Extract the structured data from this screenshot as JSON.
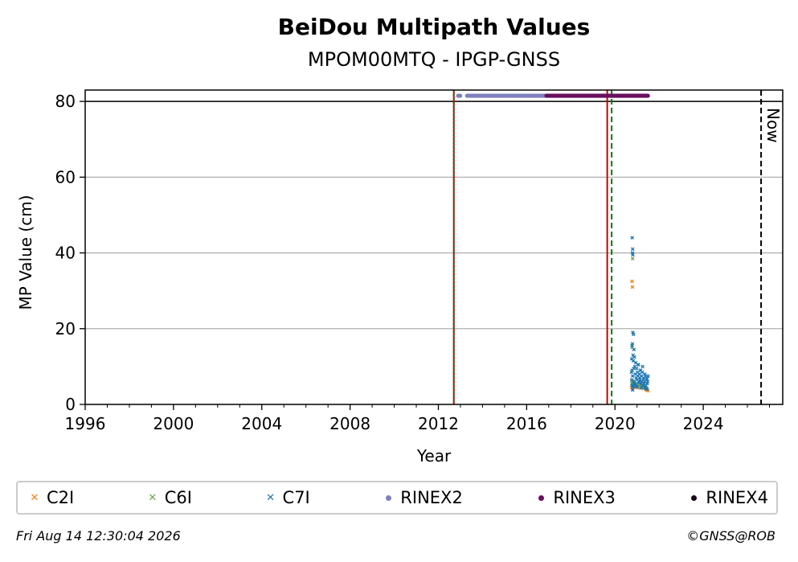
{
  "chart_data": {
    "type": "scatter",
    "title": "BeiDou Multipath Values",
    "subtitle": "MPOM00MTQ - IPGP-GNSS",
    "xlabel": "Year",
    "ylabel": "MP Value (cm)",
    "xlim": [
      1996,
      2027.6
    ],
    "ylim": [
      0,
      83
    ],
    "x_ticks": [
      "1996",
      "2000",
      "2004",
      "2008",
      "2012",
      "2016",
      "2020",
      "2024"
    ],
    "y_ticks": [
      "0",
      "20",
      "40",
      "60",
      "80"
    ],
    "grid": "horizontal",
    "legend_placement": "bottom",
    "colors": {
      "C2I": "#ff7f0e",
      "C6I": "#6aa84f",
      "C7I": "#1f77b4",
      "RINEX2": "#8080c0",
      "RINEX3": "#6a0f5f",
      "RINEX4": "#1a0018",
      "red_line": "#cc0000",
      "green_line": "#007f00",
      "now_line": "#000000"
    },
    "series": [
      {
        "name": "C2I",
        "marker": "x",
        "color": "#ff7f0e",
        "x": [
          2020.75,
          2020.78,
          2020.8,
          2020.82,
          2020.85,
          2020.88,
          2020.9,
          2020.95,
          2021.0,
          2021.05,
          2021.1,
          2021.15,
          2021.2,
          2021.25,
          2021.3,
          2021.35,
          2021.4,
          2021.45,
          2021.5,
          2020.77,
          2020.79
        ],
        "y": [
          4.5,
          5.0,
          4.2,
          6.0,
          5.5,
          4.8,
          5.2,
          4.6,
          5.0,
          4.4,
          4.9,
          4.3,
          5.1,
          4.7,
          4.2,
          4.5,
          4.0,
          3.8,
          3.6,
          32.5,
          31.0
        ]
      },
      {
        "name": "C6I",
        "marker": "x",
        "color": "#6aa84f",
        "x": [
          2020.76,
          2020.79,
          2020.82,
          2020.86,
          2020.9,
          2020.96,
          2021.02,
          2021.08,
          2021.15,
          2021.22,
          2021.3,
          2021.38,
          2021.46,
          2020.8,
          2020.78
        ],
        "y": [
          5.5,
          6.2,
          5.0,
          5.8,
          4.9,
          5.4,
          5.1,
          4.8,
          5.3,
          4.6,
          5.0,
          4.4,
          4.2,
          38.5,
          15.0
        ]
      },
      {
        "name": "C7I",
        "marker": "x",
        "color": "#1f77b4",
        "x": [
          2020.75,
          2020.76,
          2020.77,
          2020.78,
          2020.79,
          2020.8,
          2020.81,
          2020.82,
          2020.83,
          2020.84,
          2020.85,
          2020.86,
          2020.88,
          2020.9,
          2020.92,
          2020.94,
          2020.96,
          2020.98,
          2021.0,
          2021.02,
          2021.04,
          2021.06,
          2021.08,
          2021.1,
          2021.12,
          2021.14,
          2021.16,
          2021.18,
          2021.2,
          2021.22,
          2021.24,
          2021.26,
          2021.28,
          2021.3,
          2021.32,
          2021.34,
          2021.36,
          2021.38,
          2021.4,
          2021.42,
          2021.44,
          2021.46,
          2021.48,
          2021.5,
          2020.78,
          2020.8,
          2020.79,
          2020.81,
          2020.77,
          2020.82,
          2020.84,
          2020.86,
          2020.9,
          2020.95,
          2021.0,
          2021.1,
          2021.2,
          2021.3,
          2021.4,
          2020.76,
          2020.8,
          2020.85,
          2020.9,
          2021.05,
          2021.15,
          2021.25,
          2021.35,
          2021.45
        ],
        "y": [
          8.5,
          12.0,
          15.5,
          9.0,
          16.0,
          7.5,
          19.0,
          13.0,
          11.5,
          18.5,
          9.5,
          14.5,
          12.5,
          10.0,
          8.0,
          11.0,
          7.0,
          9.5,
          6.5,
          8.5,
          7.5,
          10.5,
          6.0,
          8.0,
          7.0,
          6.5,
          9.0,
          5.5,
          7.5,
          6.0,
          8.5,
          5.0,
          6.5,
          7.0,
          5.5,
          6.0,
          4.5,
          7.5,
          5.0,
          6.5,
          4.0,
          5.5,
          6.0,
          7.5,
          44.0,
          41.0,
          40.0,
          39.5,
          5.0,
          4.5,
          6.0,
          5.5,
          4.8,
          5.2,
          4.6,
          5.8,
          4.4,
          5.0,
          4.2,
          6.5,
          3.8,
          4.9,
          5.6,
          10.5,
          9.0,
          10.0,
          8.0,
          6.8
        ]
      }
    ],
    "files": [
      {
        "name": "RINEX2",
        "marker": "dot",
        "color": "#8080c0",
        "y": 81.5,
        "ranges": [
          [
            2012.9,
            2013.0
          ],
          [
            2013.3,
            2016.9
          ]
        ]
      },
      {
        "name": "RINEX3",
        "marker": "dot",
        "color": "#6a0f5f",
        "y": 81.5,
        "ranges": [
          [
            2016.9,
            2021.5
          ]
        ]
      },
      {
        "name": "RINEX4",
        "marker": "dot",
        "color": "#1a0018",
        "y": 81.5,
        "ranges": []
      }
    ],
    "vertical_lines": [
      {
        "x": 2012.7,
        "style": "solid",
        "color": "#cc0000"
      },
      {
        "x": 2012.7,
        "style": "dotted",
        "color": "#007f00"
      },
      {
        "x": 2019.65,
        "style": "solid",
        "color": "#cc0000"
      },
      {
        "x": 2019.85,
        "style": "dashed",
        "color": "#007f00"
      },
      {
        "x": 2026.62,
        "style": "dashed",
        "color": "#000000",
        "label": "Now"
      }
    ],
    "hline_y": 80
  },
  "legend": {
    "items": [
      {
        "label": "C2I",
        "kind": "x",
        "color": "#ff7f0e"
      },
      {
        "label": "C6I",
        "kind": "x",
        "color": "#6aa84f"
      },
      {
        "label": "C7I",
        "kind": "x",
        "color": "#1f77b4"
      },
      {
        "label": "RINEX2",
        "kind": "dot",
        "color": "#8080c0"
      },
      {
        "label": "RINEX3",
        "kind": "dot",
        "color": "#6a0f5f"
      },
      {
        "label": "RINEX4",
        "kind": "dot",
        "color": "#1a0018"
      }
    ]
  },
  "footer": {
    "timestamp": "Fri Aug 14 12:30:04 2026",
    "credit": "©GNSS@ROB"
  }
}
